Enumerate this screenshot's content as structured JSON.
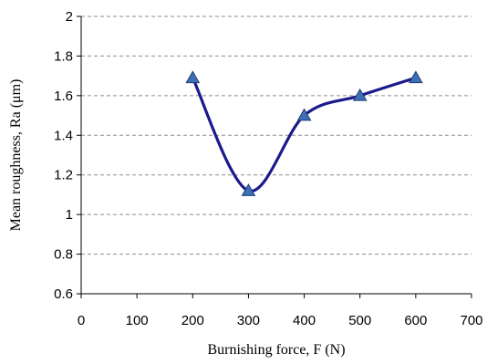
{
  "chart_data": {
    "type": "line",
    "title": "",
    "xlabel": "Burnishing force, F (N)",
    "ylabel": "Mean roughness, Ra (μm)",
    "xlim": [
      0,
      700
    ],
    "ylim": [
      0.6,
      2
    ],
    "xticks": [
      0,
      100,
      200,
      300,
      400,
      500,
      600,
      700
    ],
    "yticks": [
      0.6,
      0.8,
      1,
      1.2,
      1.4,
      1.6,
      1.8,
      2
    ],
    "xtick_labels": [
      "0",
      "100",
      "200",
      "300",
      "400",
      "500",
      "600",
      "700"
    ],
    "ytick_labels": [
      "0.6",
      "0.8",
      "1",
      "1.2",
      "1.4",
      "1.6",
      "1.8",
      "2"
    ],
    "grid": "horizontal-dashed",
    "legend": "none",
    "series": [
      {
        "x": [
          200,
          300,
          400,
          500,
          600
        ],
        "y": [
          1.69,
          1.12,
          1.5,
          1.6,
          1.69
        ],
        "line_color": "#1a1a8c",
        "marker": "triangle",
        "marker_color": "#3f6fb5"
      }
    ]
  }
}
